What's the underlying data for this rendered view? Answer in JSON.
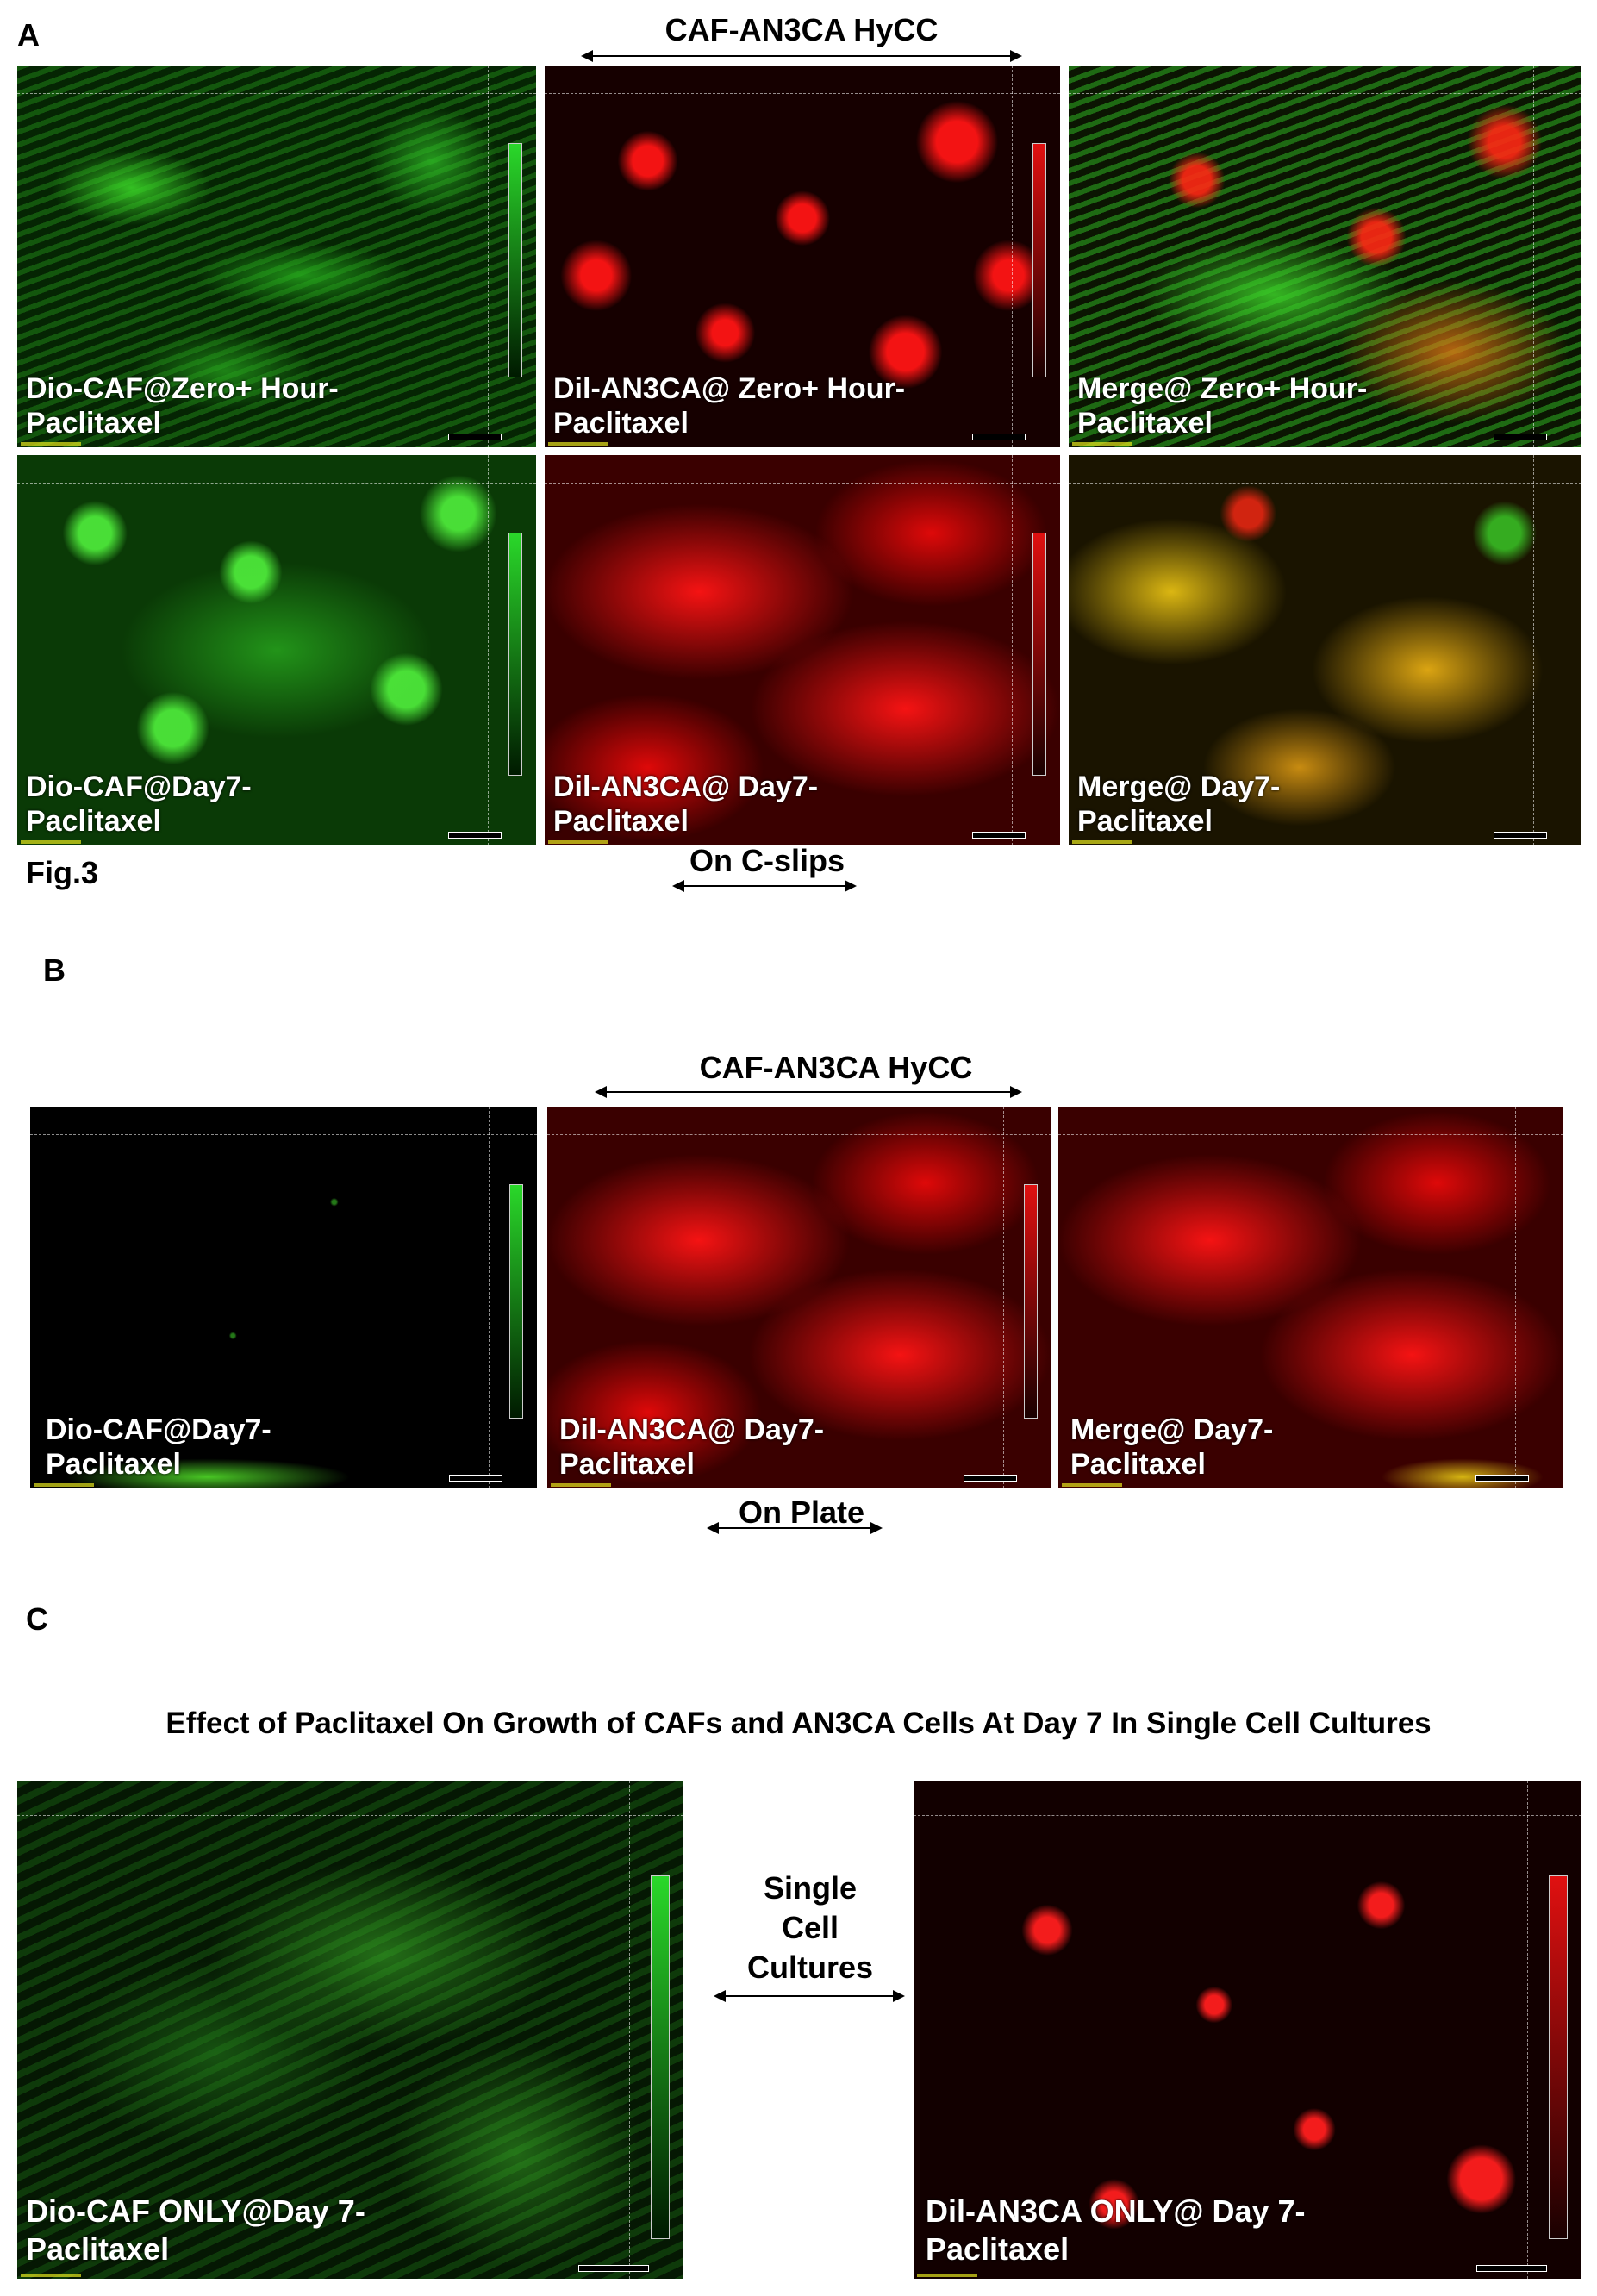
{
  "panel_labels": {
    "a": "A",
    "b": "B",
    "c": "C"
  },
  "figure_label": "Fig.3",
  "section_a": {
    "header": "CAF-AN3CA HyCC",
    "footer": "On C-slips",
    "captions": {
      "r1c1": [
        "Dio-CAF@Zero+  Hour-",
        "Paclitaxel"
      ],
      "r1c2": [
        "Dil-AN3CA@ Zero+  Hour-",
        "Paclitaxel"
      ],
      "r1c3": [
        "Merge@ Zero+  Hour-",
        "Paclitaxel"
      ],
      "r2c1": [
        "Dio-CAF@Day7-",
        "Paclitaxel"
      ],
      "r2c2": [
        "Dil-AN3CA@ Day7-",
        "Paclitaxel"
      ],
      "r2c3": [
        "Merge@ Day7-",
        "Paclitaxel"
      ]
    }
  },
  "section_b": {
    "header": "CAF-AN3CA HyCC",
    "footer": "On Plate",
    "captions": {
      "c1": [
        "Dio-CAF@Day7-",
        "Paclitaxel"
      ],
      "c2": [
        "Dil-AN3CA@ Day7-",
        "Paclitaxel"
      ],
      "c3": [
        "Merge@ Day7-",
        "Paclitaxel"
      ]
    }
  },
  "section_c": {
    "title": "Effect of Paclitaxel On Growth of CAFs and AN3CA Cells At Day 7 In Single Cell Cultures",
    "middle_label": [
      "Single",
      "Cell",
      "Cultures"
    ],
    "captions": {
      "c1": [
        "Dio-CAF ONLY@Day 7-",
        "Paclitaxel"
      ],
      "c2": [
        "Dil-AN3CA ONLY@ Day 7-",
        "Paclitaxel"
      ]
    }
  },
  "channel_colors": {
    "green": "#2ad82a",
    "red": "#e01010",
    "merge_yellow": "#e8c018"
  }
}
